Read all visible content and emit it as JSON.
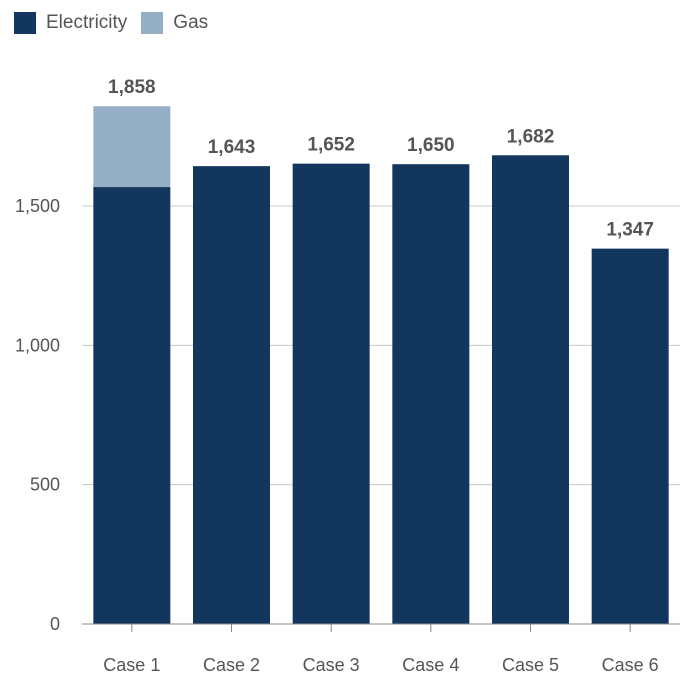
{
  "legend": {
    "items": [
      {
        "label": "Electricity",
        "color": "#12365d"
      },
      {
        "label": "Gas",
        "color": "#94afc6"
      }
    ]
  },
  "chart_data": {
    "type": "bar",
    "stacked": true,
    "categories": [
      "Case 1",
      "Case 2",
      "Case 3",
      "Case 4",
      "Case 5",
      "Case 6"
    ],
    "series": [
      {
        "name": "Electricity",
        "color": "#12365d",
        "values": [
          1568,
          1643,
          1652,
          1650,
          1682,
          1347
        ]
      },
      {
        "name": "Gas",
        "color": "#94afc6",
        "values": [
          290,
          0,
          0,
          0,
          0,
          0
        ]
      }
    ],
    "totals": [
      "1,858",
      "1,643",
      "1,652",
      "1,650",
      "1,682",
      "1,347"
    ],
    "yticks": [
      0,
      500,
      1000,
      1500
    ],
    "ytick_labels": [
      "0",
      "500",
      "1,000",
      "1,500"
    ],
    "ylim": [
      0,
      2000
    ],
    "grid": true,
    "legend_position": "top-left",
    "title": "",
    "xlabel": "",
    "ylabel": ""
  }
}
